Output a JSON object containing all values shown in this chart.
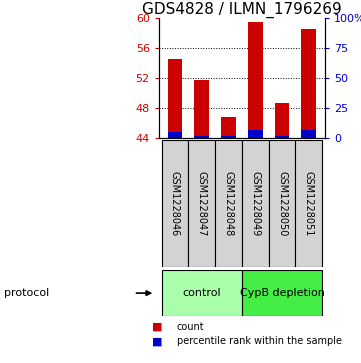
{
  "title": "GDS4828 / ILMN_1796269",
  "samples": [
    "GSM1228046",
    "GSM1228047",
    "GSM1228048",
    "GSM1228049",
    "GSM1228050",
    "GSM1228051"
  ],
  "count_values": [
    54.5,
    51.8,
    46.8,
    59.5,
    48.7,
    58.5
  ],
  "percentile_values": [
    44.8,
    44.3,
    44.2,
    45.0,
    44.2,
    45.0
  ],
  "base_value": 44.0,
  "ylim_left": [
    44,
    60
  ],
  "ylim_right": [
    0,
    100
  ],
  "yticks_left": [
    44,
    48,
    52,
    56,
    60
  ],
  "yticks_right": [
    0,
    25,
    50,
    75,
    100
  ],
  "ytick_labels_right": [
    "0",
    "25",
    "50",
    "75",
    "100%"
  ],
  "bar_color_red": "#cc0000",
  "bar_color_blue": "#0000cc",
  "control_label": "control",
  "cypb_label": "CypB depletion",
  "protocol_label": "protocol",
  "control_bg": "#aaffaa",
  "cypb_bg": "#44ee44",
  "sample_bg": "#d3d3d3",
  "legend_count": "count",
  "legend_percentile": "percentile rank within the sample",
  "title_fontsize": 11,
  "tick_fontsize": 8,
  "label_fontsize": 8
}
